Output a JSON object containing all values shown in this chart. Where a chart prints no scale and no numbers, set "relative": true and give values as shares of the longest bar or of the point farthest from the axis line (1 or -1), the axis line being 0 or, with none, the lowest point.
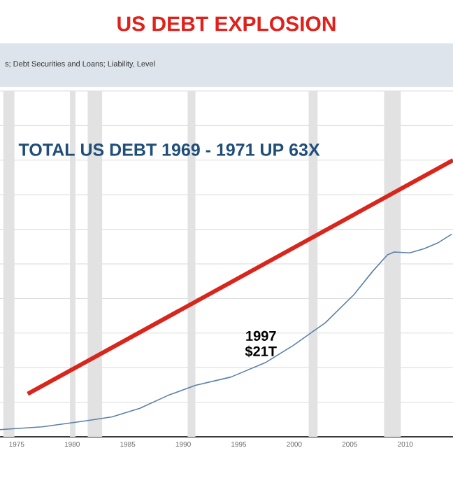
{
  "chart_data": {
    "type": "line",
    "title": "US DEBT EXPLOSION",
    "subtitle": "s; Debt Securities and Loans; Liability, Level",
    "relative": true,
    "annotations": [
      "TOTAL US DEBT 1969 - 1971 UP 63X",
      {
        "text": "1997 $21T",
        "x": 1997,
        "y": 0.27
      }
    ],
    "xlim": [
      1973.5,
      2014.3
    ],
    "xticks": [
      1975,
      1980,
      1985,
      1990,
      1995,
      2000,
      2005,
      2010
    ],
    "grid": "y",
    "bands": [
      {
        "axis": "x",
        "from": 1973.8,
        "to": 1974.8,
        "color": "#e2e2e2"
      },
      {
        "axis": "x",
        "from": 1979.8,
        "to": 1980.3,
        "color": "#e2e2e2"
      },
      {
        "axis": "x",
        "from": 1981.4,
        "to": 1982.7,
        "color": "#e2e2e2"
      },
      {
        "axis": "x",
        "from": 1990.4,
        "to": 1991.1,
        "color": "#e2e2e2"
      },
      {
        "axis": "x",
        "from": 2001.3,
        "to": 2002.1,
        "color": "#e2e2e2"
      },
      {
        "axis": "x",
        "from": 2008.1,
        "to": 2009.6,
        "color": "#e2e2e2"
      }
    ],
    "series": [
      {
        "type": "line",
        "color": "#5a7fab",
        "x": [
          1973.5,
          1977.3,
          1981.1,
          1983.6,
          1986.1,
          1988.6,
          1991.1,
          1994.3,
          1997.4,
          1999.9,
          2001.7,
          2002.8,
          2005.4,
          2007.1,
          2008.4,
          2009.0,
          2010.4,
          2011.7,
          2012.9,
          2014.2
        ],
        "values": [
          0.026,
          0.036,
          0.057,
          0.072,
          0.103,
          0.149,
          0.186,
          0.216,
          0.268,
          0.33,
          0.381,
          0.412,
          0.515,
          0.6,
          0.658,
          0.668,
          0.665,
          0.68,
          0.7,
          0.733
        ]
      },
      {
        "type": "line",
        "color": "#d9261c",
        "x": [
          1976.0,
          2014.3
        ],
        "values": [
          0.155,
          1.0
        ]
      }
    ]
  }
}
